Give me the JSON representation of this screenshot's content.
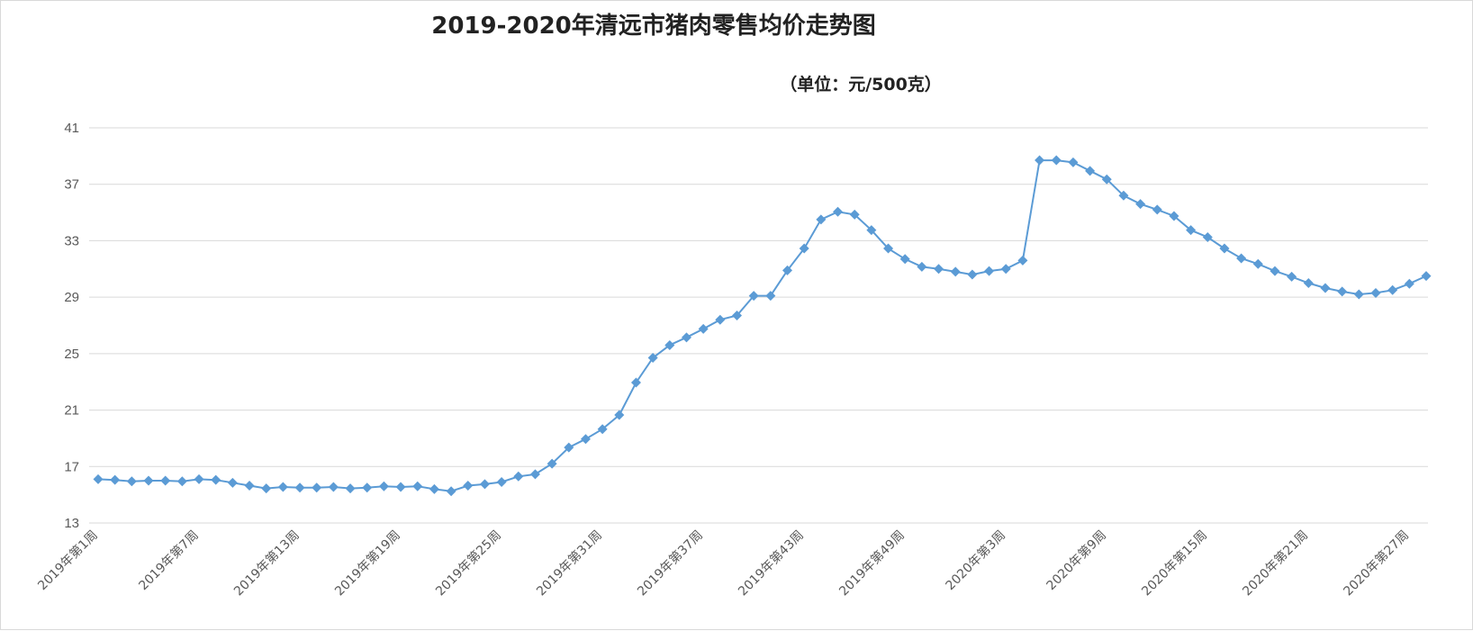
{
  "chart_data": {
    "type": "line",
    "title": "2019-2020年清远市猪肉零售均价走势图",
    "unit_label": "（单位：元/500克）",
    "xlabel": "",
    "ylabel": "",
    "ylim": [
      13,
      41
    ],
    "y_ticks": [
      13,
      17,
      21,
      25,
      29,
      33,
      37,
      41
    ],
    "grid": true,
    "legend": "none",
    "color": "#5b9bd5",
    "x": [
      "2019年第1周",
      "2019年第2周",
      "2019年第3周",
      "2019年第4周",
      "2019年第5周",
      "2019年第6周",
      "2019年第7周",
      "2019年第8周",
      "2019年第9周",
      "2019年第10周",
      "2019年第11周",
      "2019年第12周",
      "2019年第13周",
      "2019年第14周",
      "2019年第15周",
      "2019年第16周",
      "2019年第17周",
      "2019年第18周",
      "2019年第19周",
      "2019年第20周",
      "2019年第21周",
      "2019年第22周",
      "2019年第23周",
      "2019年第24周",
      "2019年第25周",
      "2019年第26周",
      "2019年第27周",
      "2019年第28周",
      "2019年第29周",
      "2019年第30周",
      "2019年第31周",
      "2019年第32周",
      "2019年第33周",
      "2019年第34周",
      "2019年第35周",
      "2019年第36周",
      "2019年第37周",
      "2019年第38周",
      "2019年第39周",
      "2019年第40周",
      "2019年第41周",
      "2019年第42周",
      "2019年第43周",
      "2019年第44周",
      "2019年第45周",
      "2019年第46周",
      "2019年第47周",
      "2019年第48周",
      "2019年第49周",
      "2019年第50周",
      "2019年第51周",
      "2019年第52周",
      "2020年第1周",
      "2020年第2周",
      "2020年第3周",
      "2020年第4周",
      "2020年第5周",
      "2020年第6周",
      "2020年第7周",
      "2020年第8周",
      "2020年第9周",
      "2020年第10周",
      "2020年第11周",
      "2020年第12周",
      "2020年第13周",
      "2020年第14周",
      "2020年第15周",
      "2020年第16周",
      "2020年第17周",
      "2020年第18周",
      "2020年第19周",
      "2020年第20周",
      "2020年第21周",
      "2020年第22周",
      "2020年第23周",
      "2020年第24周",
      "2020年第25周",
      "2020年第26周",
      "2020年第27周",
      "2020年第28周"
    ],
    "x_tick_labels": [
      "2019年第1周",
      "2019年第7周",
      "2019年第13周",
      "2019年第19周",
      "2019年第25周",
      "2019年第31周",
      "2019年第37周",
      "2019年第43周",
      "2019年第49周",
      "2020年第3周",
      "2020年第9周",
      "2020年第15周",
      "2020年第21周",
      "2020年第27周"
    ],
    "x_tick_indices": [
      0,
      6,
      12,
      18,
      24,
      30,
      36,
      42,
      48,
      54,
      60,
      66,
      72,
      78
    ],
    "series": [
      {
        "values": [
          16.1,
          16.05,
          15.95,
          16.0,
          16.0,
          15.95,
          16.1,
          16.05,
          15.85,
          15.65,
          15.45,
          15.55,
          15.5,
          15.5,
          15.55,
          15.45,
          15.5,
          15.6,
          15.55,
          15.6,
          15.4,
          15.25,
          15.65,
          15.75,
          15.9,
          16.3,
          16.45,
          17.2,
          18.35,
          18.95,
          19.65,
          20.65,
          22.95,
          24.7,
          25.6,
          26.15,
          26.75,
          27.4,
          27.7,
          29.1,
          29.1,
          30.9,
          32.45,
          34.5,
          35.05,
          34.85,
          33.75,
          32.45,
          31.7,
          31.15,
          31.0,
          30.8,
          30.6,
          30.85,
          31.0,
          31.6,
          38.7,
          38.7,
          38.55,
          37.95,
          37.35,
          36.2,
          35.6,
          35.2,
          34.75,
          33.75,
          33.25,
          32.45,
          31.75,
          31.35,
          30.85,
          30.45,
          30.0,
          29.65,
          29.4,
          29.2,
          29.3,
          29.5,
          29.95,
          30.5
        ]
      }
    ]
  }
}
